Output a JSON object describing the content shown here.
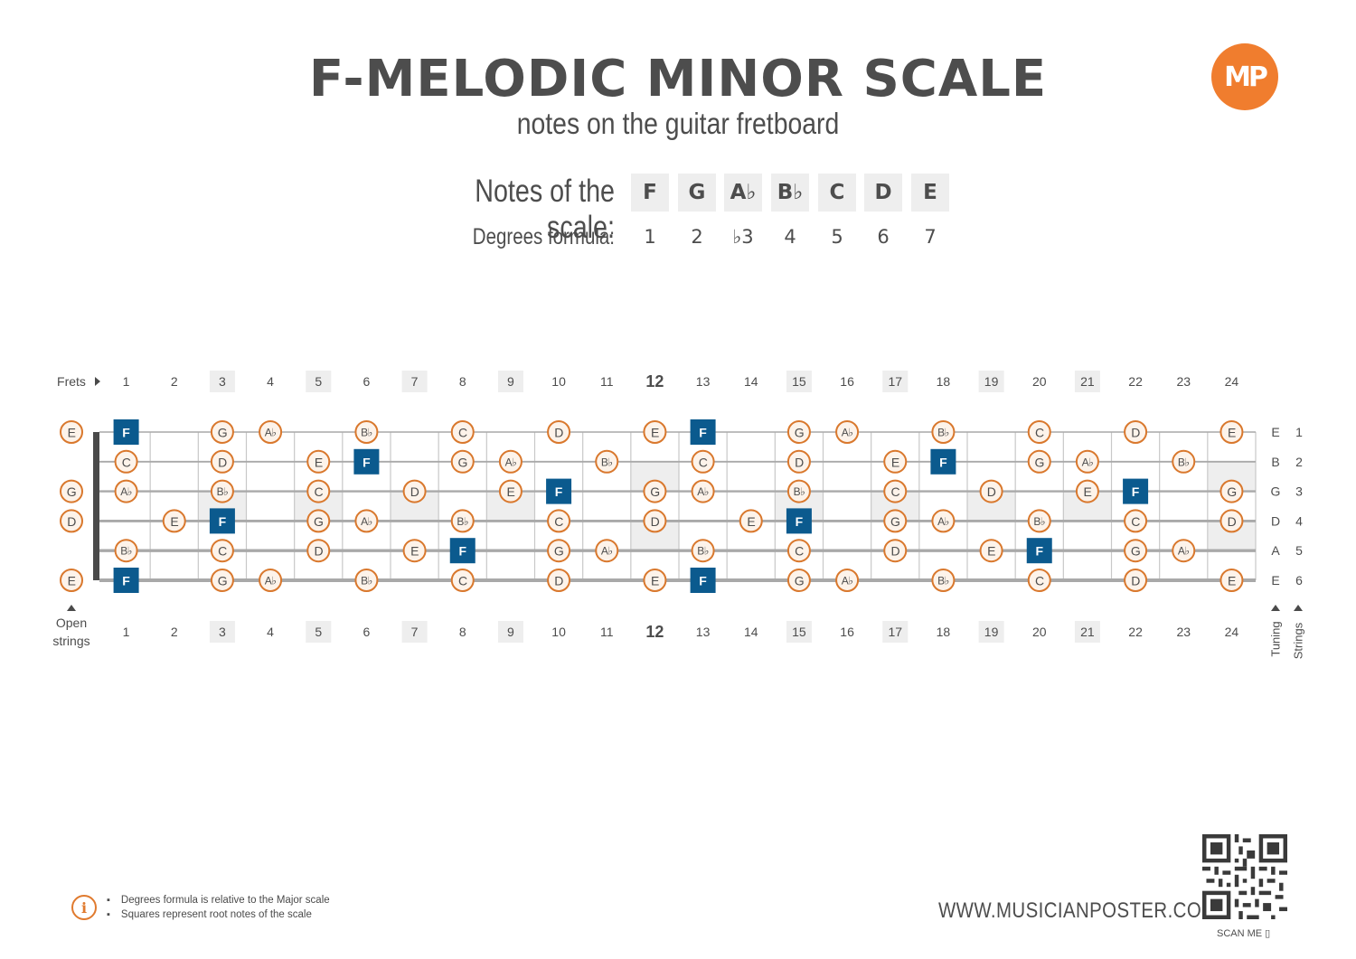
{
  "header": {
    "title": "F-MELODIC MINOR SCALE",
    "subtitle": "notes on the guitar fretboard",
    "logo_text": "MP"
  },
  "scale": {
    "notes_label": "Notes of the scale:",
    "degrees_label": "Degrees formula:",
    "notes": [
      "F",
      "G",
      "A♭",
      "B♭",
      "C",
      "D",
      "E"
    ],
    "degrees": [
      "1",
      "2",
      "♭3",
      "4",
      "5",
      "6",
      "7"
    ]
  },
  "fretboard": {
    "frets_label": "Frets",
    "open_label_1": "Open",
    "open_label_2": "strings",
    "tuning_label": "Tuning",
    "strings_label": "Strings",
    "fret_numbers": [
      "1",
      "2",
      "3",
      "4",
      "5",
      "6",
      "7",
      "8",
      "9",
      "10",
      "11",
      "12",
      "13",
      "14",
      "15",
      "16",
      "17",
      "18",
      "19",
      "20",
      "21",
      "22",
      "23",
      "24"
    ],
    "marker_frets": [
      3,
      5,
      7,
      9,
      15,
      17,
      19,
      21
    ],
    "double_marker_fret": 12,
    "root_note": "F",
    "strings": [
      {
        "number": "1",
        "tuning": "E",
        "open": "E",
        "notes": [
          "F",
          "",
          "G",
          "A♭",
          "",
          "B♭",
          "",
          "C",
          "",
          "D",
          "",
          "E",
          "F",
          "",
          "G",
          "A♭",
          "",
          "B♭",
          "",
          "C",
          "",
          "D",
          "",
          "E"
        ]
      },
      {
        "number": "2",
        "tuning": "B",
        "open": "",
        "notes": [
          "C",
          "",
          "D",
          "",
          "E",
          "F",
          "",
          "G",
          "A♭",
          "",
          "B♭",
          "",
          "C",
          "",
          "D",
          "",
          "E",
          "F",
          "",
          "G",
          "A♭",
          "",
          "B♭",
          ""
        ]
      },
      {
        "number": "3",
        "tuning": "G",
        "open": "G",
        "notes": [
          "A♭",
          "",
          "B♭",
          "",
          "C",
          "",
          "D",
          "",
          "E",
          "F",
          "",
          "G",
          "A♭",
          "",
          "B♭",
          "",
          "C",
          "",
          "D",
          "",
          "E",
          "F",
          "",
          "G"
        ]
      },
      {
        "number": "4",
        "tuning": "D",
        "open": "D",
        "notes": [
          "",
          "E",
          "F",
          "",
          "G",
          "A♭",
          "",
          "B♭",
          "",
          "C",
          "",
          "D",
          "",
          "E",
          "F",
          "",
          "G",
          "A♭",
          "",
          "B♭",
          "",
          "C",
          "",
          "D"
        ]
      },
      {
        "number": "5",
        "tuning": "A",
        "open": "",
        "notes": [
          "B♭",
          "",
          "C",
          "",
          "D",
          "",
          "E",
          "F",
          "",
          "G",
          "A♭",
          "",
          "B♭",
          "",
          "C",
          "",
          "D",
          "",
          "E",
          "F",
          "",
          "G",
          "A♭",
          ""
        ]
      },
      {
        "number": "6",
        "tuning": "E",
        "open": "E",
        "notes": [
          "F",
          "",
          "G",
          "A♭",
          "",
          "B♭",
          "",
          "C",
          "",
          "D",
          "",
          "E",
          "F",
          "",
          "G",
          "A♭",
          "",
          "B♭",
          "",
          "C",
          "",
          "D",
          "",
          "E"
        ]
      }
    ]
  },
  "footer": {
    "info_1": "Degrees formula is relative to the Major scale",
    "info_2": "Squares represent root notes of the scale",
    "website": "WWW.MUSICIANPOSTER.COM",
    "scan_label": "SCAN ME"
  },
  "colors": {
    "circle_border": "#d9782d",
    "circle_fill": "#fdf3ea",
    "root_fill": "#0b5a8e",
    "marker_bg": "#eeeeee",
    "text": "#4d4d4d"
  }
}
